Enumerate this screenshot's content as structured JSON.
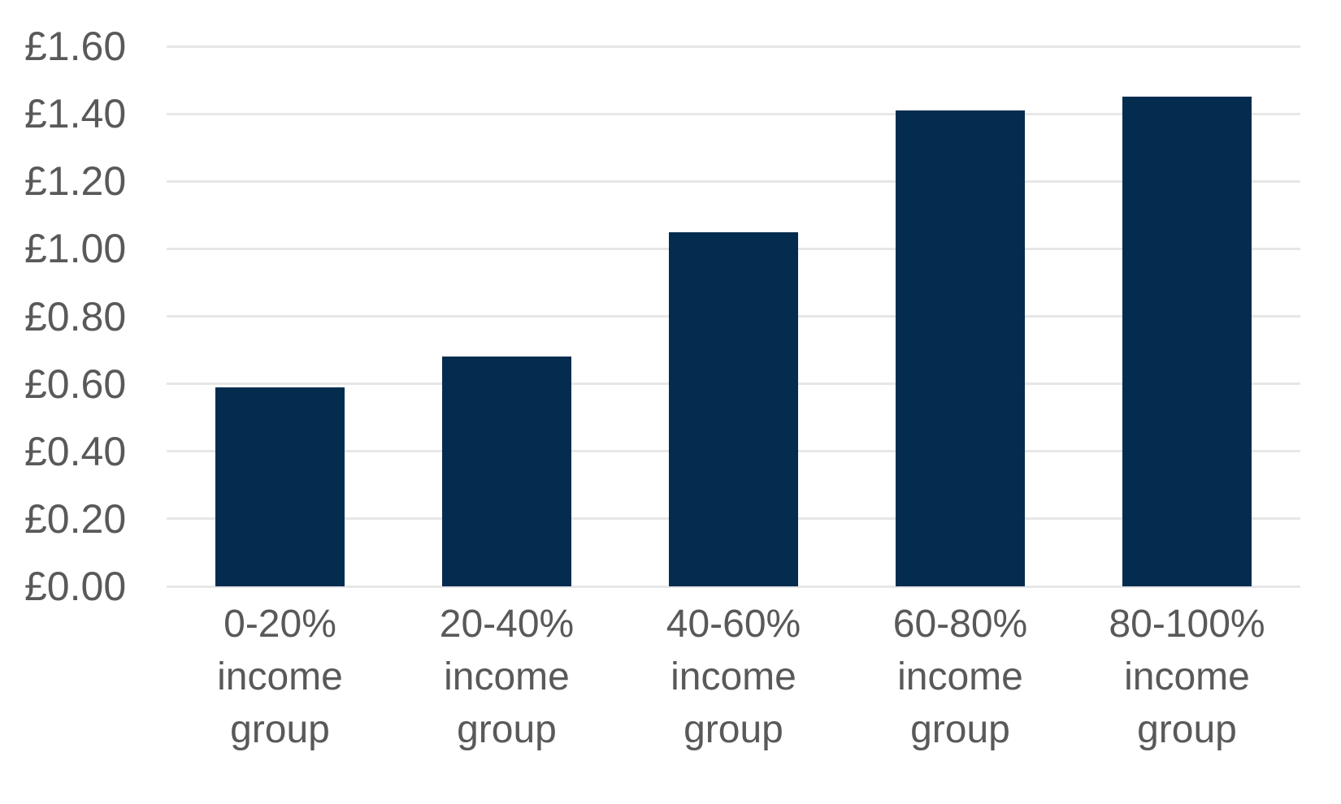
{
  "chart_data": {
    "type": "bar",
    "categories": [
      "0-20% income group",
      "20-40% income group",
      "40-60% income group",
      "60-80% income group",
      "80-100% income group"
    ],
    "values": [
      0.59,
      0.68,
      1.05,
      1.41,
      1.45
    ],
    "title": "",
    "xlabel": "",
    "ylabel": "",
    "ylim": [
      0,
      1.6
    ],
    "ytick_step": 0.2,
    "ytick_labels": [
      "£0.00",
      "£0.20",
      "£0.40",
      "£0.60",
      "£0.80",
      "£1.00",
      "£1.20",
      "£1.40",
      "£1.60"
    ],
    "currency_prefix": "£",
    "grid": true,
    "legend": false,
    "colors": {
      "bar": "#032c4f",
      "gridline": "#e7e7e7",
      "tick_text": "#595959",
      "background": "#ffffff"
    }
  }
}
